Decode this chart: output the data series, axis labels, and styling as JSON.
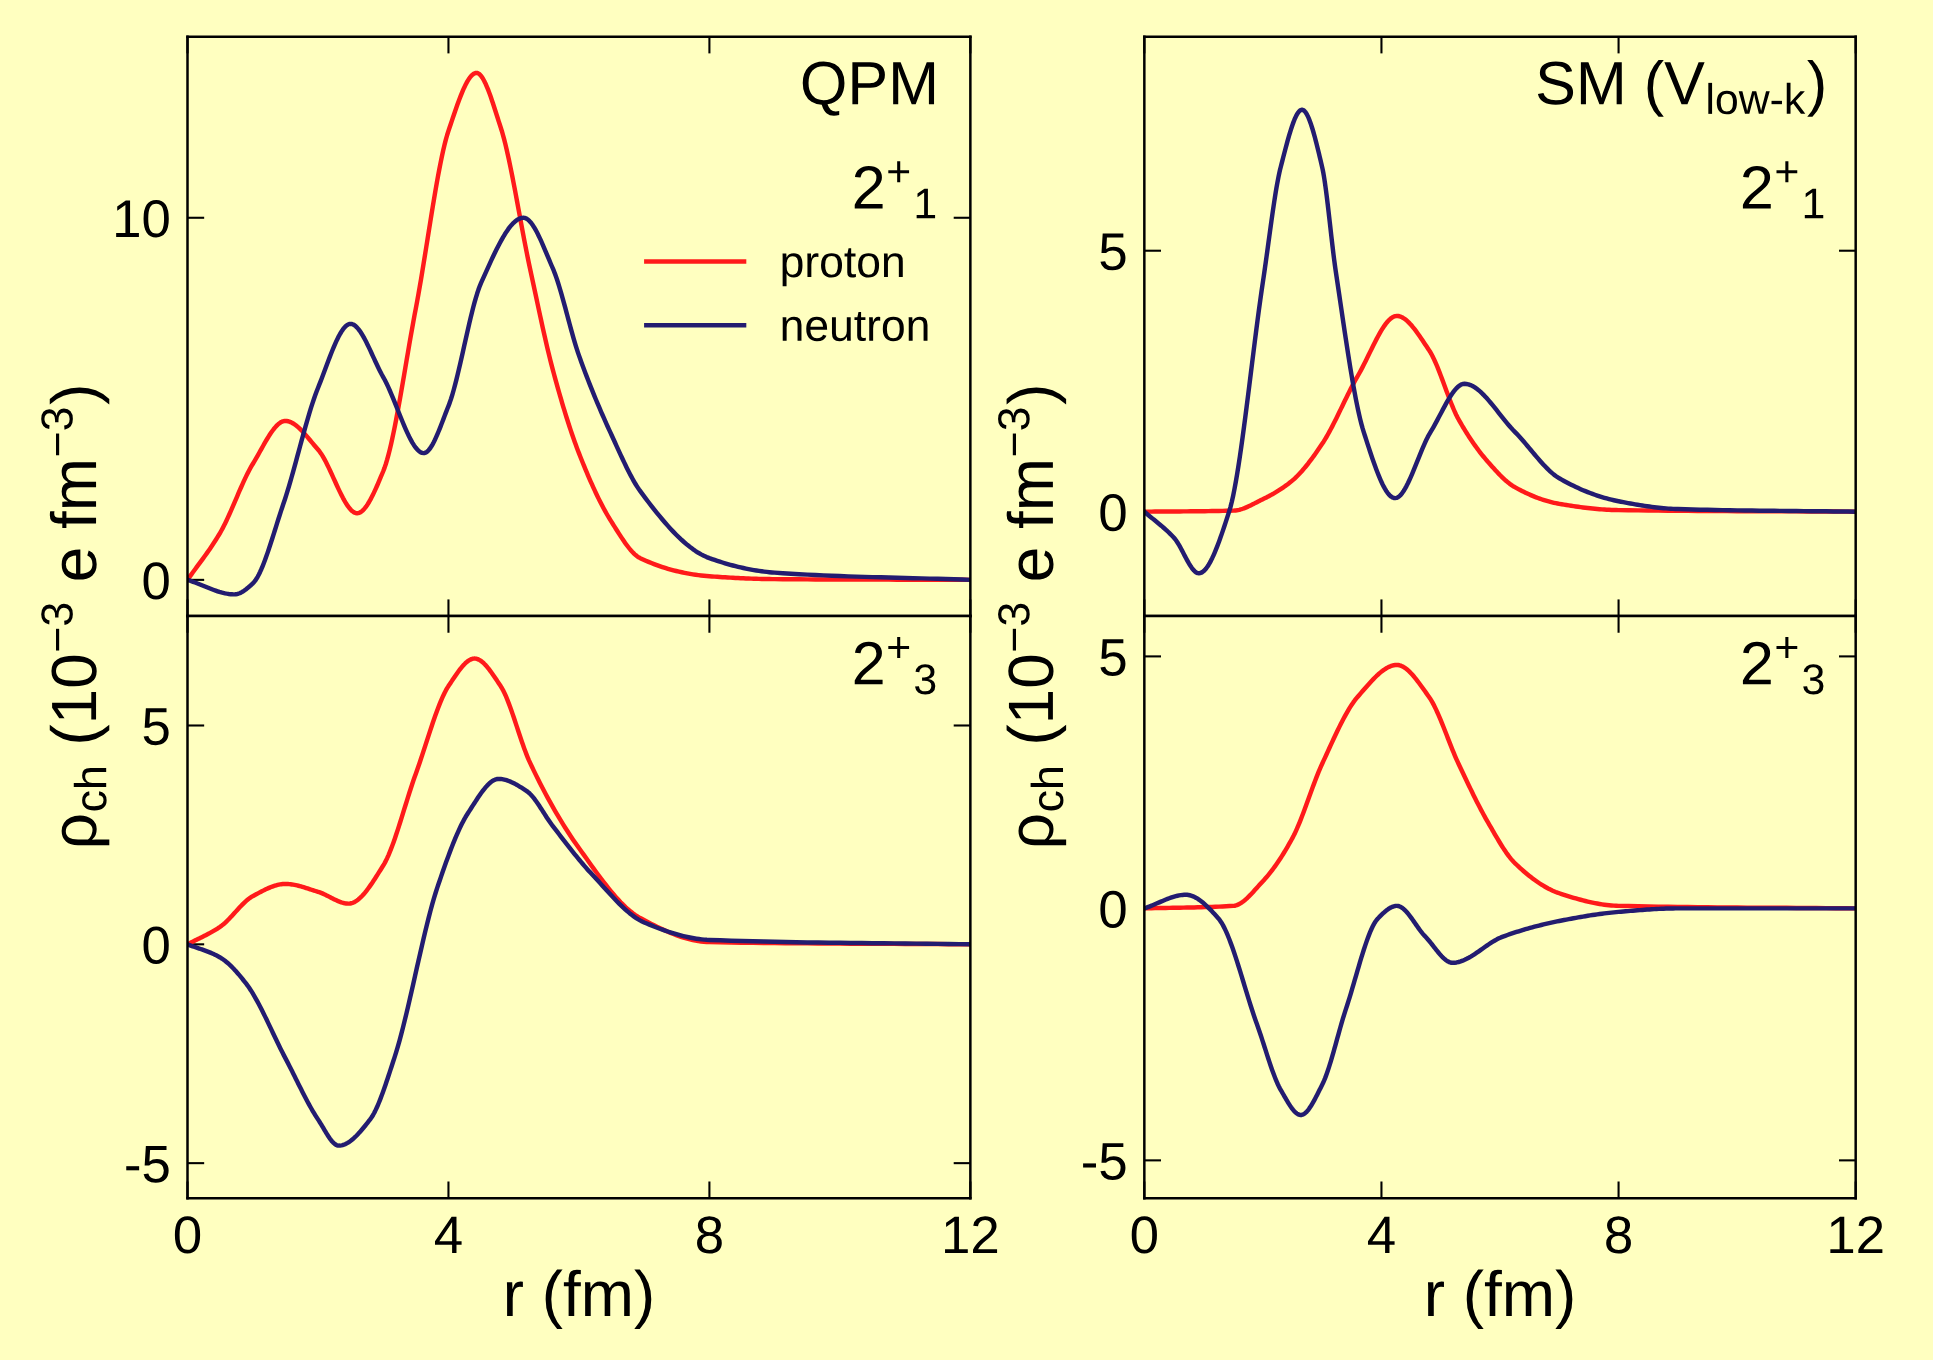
{
  "chart_data": [
    {
      "type": "line",
      "ylabel": "ρ$_{ch}$ (10$^{−3}$ e fm$^{−3}$)",
      "annotations": [
        "QPM",
        "2$^{+}$$_{1}$"
      ],
      "legend": "center right",
      "tick_labels": "y",
      "xlim": [
        0,
        12
      ],
      "xticks": [
        0,
        4,
        8,
        12
      ],
      "ylim": [
        -1,
        15
      ],
      "yticks": [
        0,
        10
      ],
      "series": [
        {
          "name": "proton",
          "color": "#ff1a1a",
          "x": [
            0,
            0.5,
            1.0,
            1.5,
            2.0,
            2.6,
            3.0,
            3.5,
            4.0,
            4.43,
            4.8,
            5.25,
            5.6,
            6.0,
            6.5,
            6.94,
            8.0,
            9.0,
            12
          ],
          "values": [
            0,
            1.3,
            3.2,
            4.39,
            3.6,
            1.84,
            3.0,
            7.5,
            12.4,
            14.0,
            12.5,
            8.6,
            5.8,
            3.5,
            1.6,
            0.6,
            0.1,
            0.02,
            0
          ]
        },
        {
          "name": "neutron",
          "color": "#231c70",
          "x": [
            0,
            0.72,
            1.0,
            1.47,
            2.0,
            2.5,
            3.0,
            3.62,
            4.0,
            4.5,
            5.15,
            5.6,
            6.0,
            6.5,
            6.94,
            8.0,
            9.0,
            12
          ],
          "values": [
            0,
            -0.4,
            -0.1,
            2.1,
            5.3,
            7.07,
            5.6,
            3.5,
            4.8,
            8.2,
            10.0,
            8.6,
            6.2,
            4.0,
            2.45,
            0.6,
            0.2,
            0
          ]
        }
      ]
    },
    {
      "type": "line",
      "xlabel": "r (fm)",
      "annotations": [
        "2$^{+}$$_{3}$"
      ],
      "xlim": [
        0,
        12
      ],
      "xticks": [
        0,
        4,
        8,
        12
      ],
      "ylim": [
        -5.8,
        7.5
      ],
      "yticks": [
        -5,
        0,
        5
      ],
      "series": [
        {
          "color": "#ff1a1a",
          "x": [
            0,
            0.5,
            1.0,
            1.5,
            2.0,
            2.47,
            3.0,
            3.5,
            4.0,
            4.4,
            4.8,
            5.25,
            6.0,
            6.94,
            8.0,
            12
          ],
          "values": [
            0,
            0.4,
            1.1,
            1.38,
            1.2,
            0.93,
            1.8,
            3.9,
            5.9,
            6.53,
            5.9,
            4.15,
            2.2,
            0.6,
            0.05,
            0
          ]
        },
        {
          "color": "#231c70",
          "x": [
            0,
            0.5,
            0.9,
            1.5,
            2.0,
            2.32,
            2.8,
            3.17,
            3.83,
            4.3,
            4.77,
            5.2,
            5.6,
            6.2,
            7.0,
            8.0,
            12
          ],
          "values": [
            0,
            -0.3,
            -0.9,
            -2.6,
            -4.0,
            -4.6,
            -4.0,
            -2.6,
            1.3,
            3.0,
            3.78,
            3.5,
            2.7,
            1.6,
            0.5,
            0.1,
            0
          ]
        }
      ]
    },
    {
      "type": "line",
      "ylabel": "ρ$_{ch}$ (10$^{−3}$ e fm$^{−3}$)",
      "annotations": [
        "SM (V$_{low-k}$)",
        "2$^{+}$$_{1}$"
      ],
      "tick_labels": "y",
      "xlim": [
        0,
        12
      ],
      "xticks": [
        0,
        4,
        8,
        12
      ],
      "ylim": [
        -2,
        9.1
      ],
      "yticks": [
        0,
        5
      ],
      "series": [
        {
          "color": "#ff1a1a",
          "x": [
            0,
            1.5,
            2.0,
            2.5,
            3.0,
            3.6,
            4.26,
            4.8,
            5.3,
            5.8,
            6.25,
            7.0,
            8.0,
            12
          ],
          "values": [
            0,
            0.02,
            0.24,
            0.6,
            1.3,
            2.6,
            3.75,
            3.1,
            1.77,
            0.95,
            0.47,
            0.15,
            0.03,
            0
          ]
        },
        {
          "color": "#231c70",
          "x": [
            0,
            0.5,
            0.92,
            1.43,
            2.0,
            2.3,
            2.66,
            3.0,
            3.23,
            3.7,
            4.23,
            4.83,
            5.4,
            6.25,
            7.0,
            8.0,
            9.0,
            12
          ],
          "values": [
            0,
            -0.5,
            -1.18,
            0,
            4.4,
            6.6,
            7.7,
            6.6,
            4.6,
            1.53,
            0.26,
            1.53,
            2.45,
            1.53,
            0.64,
            0.2,
            0.05,
            0
          ]
        }
      ]
    },
    {
      "type": "line",
      "xlabel": "r (fm)",
      "annotations": [
        "2$^{+}$$_{3}$"
      ],
      "xlim": [
        0,
        12
      ],
      "xticks": [
        0,
        4,
        8,
        12
      ],
      "ylim": [
        -5.75,
        5.8
      ],
      "yticks": [
        -5,
        0,
        5
      ],
      "series": [
        {
          "color": "#ff1a1a",
          "x": [
            0,
            1.5,
            2.0,
            2.5,
            3.0,
            3.6,
            4.26,
            4.8,
            5.3,
            5.8,
            6.25,
            7.0,
            8.0,
            12
          ],
          "values": [
            0,
            0.05,
            0.54,
            1.4,
            2.87,
            4.2,
            4.83,
            4.2,
            2.87,
            1.7,
            0.9,
            0.3,
            0.05,
            0
          ]
        },
        {
          "color": "#231c70",
          "x": [
            0,
            0.7,
            1.25,
            1.9,
            2.3,
            2.64,
            3.0,
            3.4,
            3.94,
            4.26,
            4.74,
            5.2,
            6.05,
            7.0,
            8.0,
            9.0,
            12
          ],
          "values": [
            0,
            0.27,
            -0.2,
            -2.3,
            -3.6,
            -4.1,
            -3.5,
            -2.0,
            -0.2,
            0.05,
            -0.56,
            -1.08,
            -0.56,
            -0.25,
            -0.07,
            0,
            0
          ]
        }
      ]
    }
  ]
}
